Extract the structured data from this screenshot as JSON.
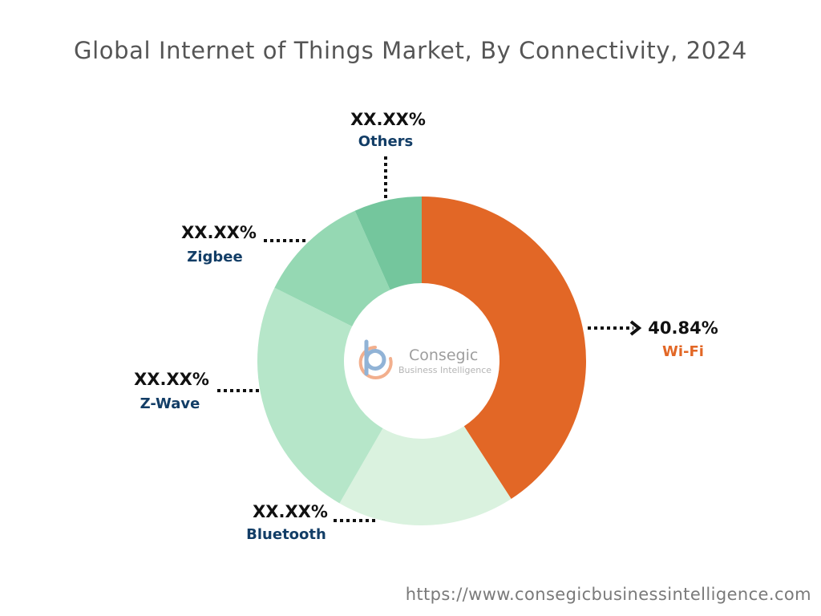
{
  "chart_data": {
    "type": "pie",
    "title": "Global Internet of Things Market, By Connectivity, 2024",
    "slices": [
      {
        "label": "Wi-Fi",
        "value_label": "40.84%",
        "value": 40.84,
        "color": "#e26726",
        "label_color": "#e26726"
      },
      {
        "label": "Bluetooth",
        "value_label": "XX.XX%",
        "value": 17.5,
        "color": "#daf2df",
        "label_color": "#123d66"
      },
      {
        "label": "Z-Wave",
        "value_label": "XX.XX%",
        "value": 24.0,
        "color": "#b6e6c9",
        "label_color": "#123d66"
      },
      {
        "label": "Zigbee",
        "value_label": "XX.XX%",
        "value": 11.0,
        "color": "#95d8b3",
        "label_color": "#123d66"
      },
      {
        "label": "Others",
        "value_label": "XX.XX%",
        "value": 6.66,
        "color": "#74c69d",
        "label_color": "#123d66"
      }
    ]
  },
  "logo": {
    "name": "Consegic",
    "tagline": "Business Intelligence",
    "colors": {
      "b": "#7ea6cf",
      "c": "#f0a27a"
    }
  },
  "source": "https://www.consegicbusinessintelligence.com"
}
